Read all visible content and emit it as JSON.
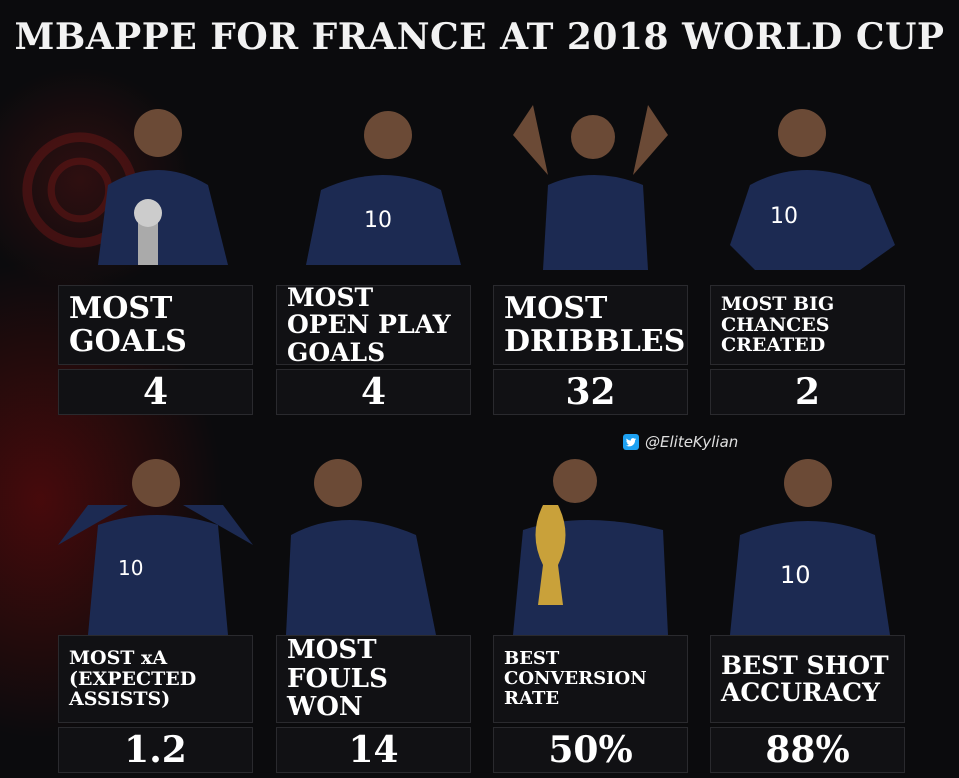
{
  "title": "MBAPPE FOR FRANCE AT 2018 WORLD CUP",
  "credit": "@EliteKylian",
  "colors": {
    "jersey": "#1c2a52",
    "skin": "#6b4a36",
    "background": "#0b0b0d",
    "accent_red": "#7a0c0c",
    "twitter": "#1da1f2"
  },
  "stats": [
    {
      "label": "MOST GOALS",
      "value": "4"
    },
    {
      "label": "MOST OPEN PLAY GOALS",
      "value": "4"
    },
    {
      "label": "MOST DRIBBLES",
      "value": "32"
    },
    {
      "label": "MOST BIG CHANCES CREATED",
      "value": "2"
    },
    {
      "label": "MOST xA (EXPECTED ASSISTS)",
      "value": "1.2"
    },
    {
      "label": "MOST FOULS WON",
      "value": "14"
    },
    {
      "label": "BEST CONVERSION RATE",
      "value": "50%"
    },
    {
      "label": "BEST SHOT ACCURACY",
      "value": "88%"
    }
  ],
  "jersey_number": "10"
}
